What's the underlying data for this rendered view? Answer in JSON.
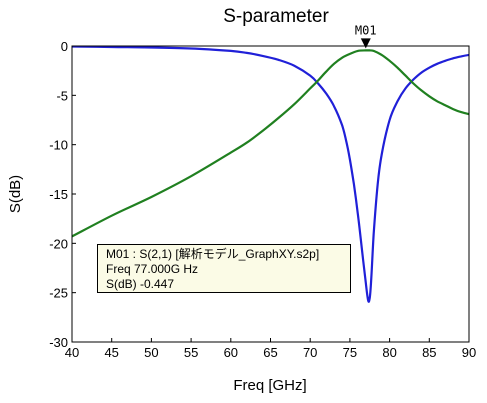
{
  "chart_data": {
    "type": "line",
    "title": "S-parameter",
    "xlabel": "Freq [GHz]",
    "ylabel": "S(dB)",
    "xlim": [
      40,
      90
    ],
    "ylim": [
      -30,
      0
    ],
    "xticks": [
      40,
      45,
      50,
      55,
      60,
      65,
      70,
      75,
      80,
      85,
      90
    ],
    "yticks": [
      0,
      -5,
      -10,
      -15,
      -20,
      -25,
      -30
    ],
    "grid": false,
    "legend": "none",
    "series": [
      {
        "color": "#2020d8",
        "x": [
          40,
          45,
          50,
          55,
          60,
          62,
          64,
          66,
          68,
          70,
          71,
          72,
          73,
          74,
          74.5,
          75,
          75.5,
          76,
          76.5,
          77,
          77.3,
          77.5,
          77.7,
          78,
          78.5,
          79,
          80,
          81,
          82,
          83,
          84,
          85,
          86,
          87,
          88,
          89,
          90
        ],
        "y": [
          -0.05,
          -0.1,
          -0.15,
          -0.25,
          -0.5,
          -0.7,
          -1.0,
          -1.4,
          -2.0,
          -3.0,
          -3.8,
          -4.8,
          -6.1,
          -8.0,
          -9.5,
          -11.5,
          -14.0,
          -17.0,
          -20.5,
          -24.0,
          -25.8,
          -25.5,
          -23.5,
          -19.0,
          -14.0,
          -11.0,
          -7.5,
          -5.6,
          -4.3,
          -3.4,
          -2.7,
          -2.2,
          -1.8,
          -1.5,
          -1.25,
          -1.05,
          -0.9
        ]
      },
      {
        "color": "#208020",
        "x": [
          40,
          45,
          50,
          55,
          60,
          62,
          64,
          66,
          68,
          70,
          71,
          72,
          73,
          74,
          75,
          76,
          77,
          77.5,
          78,
          79,
          80,
          81,
          82,
          83,
          84,
          85,
          86,
          87,
          88,
          89,
          90
        ],
        "y": [
          -19.3,
          -17.2,
          -15.3,
          -13.2,
          -10.8,
          -9.8,
          -8.6,
          -7.3,
          -5.9,
          -4.3,
          -3.5,
          -2.6,
          -1.8,
          -1.2,
          -0.8,
          -0.5,
          -0.45,
          -0.45,
          -0.5,
          -0.9,
          -1.5,
          -2.2,
          -3.0,
          -3.8,
          -4.5,
          -5.1,
          -5.6,
          -6.0,
          -6.4,
          -6.7,
          -6.9
        ]
      }
    ],
    "marker": {
      "name": "M01",
      "x": 77,
      "y": -0.447,
      "line1": "M01 : S(2,1) [解析モデル_GraphXY.s2p]",
      "line2": "Freq   77.000G  Hz",
      "line3": "S(dB)  -0.447"
    }
  }
}
